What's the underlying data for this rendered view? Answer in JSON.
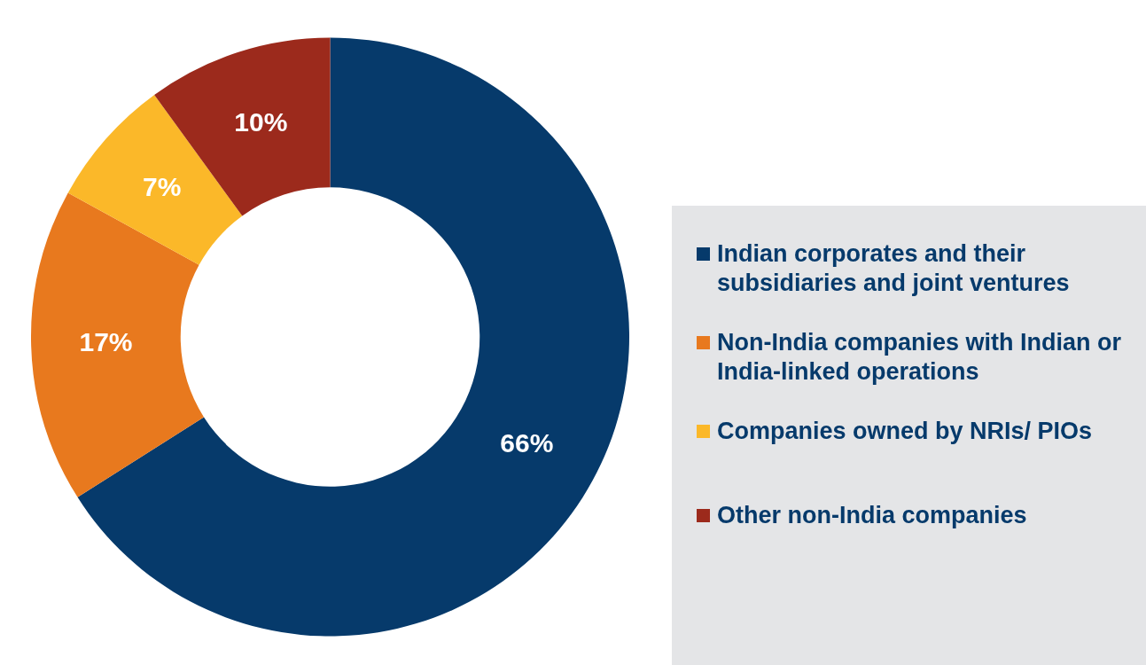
{
  "chart_data": {
    "type": "donut",
    "categories": [
      "Indian corporates and their subsidiaries and joint ventures",
      "Non-India companies with Indian or India-linked operations",
      "Companies owned by NRIs/ PIOs",
      "Other non-India companies"
    ],
    "values": [
      66,
      17,
      7,
      10
    ],
    "colors": [
      "#063a6b",
      "#e8791e",
      "#fbb829",
      "#9c2a1c"
    ],
    "value_labels": [
      "66%",
      "17%",
      "7%",
      "10%"
    ],
    "legend": "right"
  }
}
